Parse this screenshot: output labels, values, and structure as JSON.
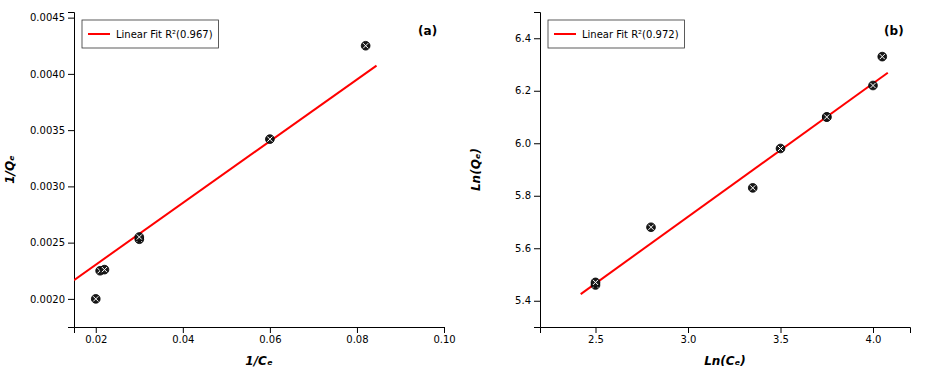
{
  "chart_data": [
    {
      "type": "scatter",
      "title": "(a)",
      "xlabel": "1/Cₑ",
      "ylabel": "1/Qₑ",
      "series": [
        {
          "name": "Linear Fit R²(0.967)",
          "type": "line",
          "color": "#FF0000",
          "x": [
            0.015,
            0.0845
          ],
          "values": [
            0.0021666,
            0.00407368
          ]
        },
        {
          "type": "scatter",
          "color": "#1a1a1a",
          "marker": "circle",
          "x": [
            0.02,
            0.021,
            0.022,
            0.03,
            0.03,
            0.06,
            0.082
          ],
          "values": [
            0.002,
            0.00225,
            0.00226,
            0.00253,
            0.00255,
            0.00342,
            0.00425
          ]
        }
      ],
      "xlim": [
        0.015,
        0.1
      ],
      "ylim": [
        0.00175,
        0.00455
      ],
      "xticks": [
        0.02,
        0.04,
        0.06,
        0.08,
        {
          "value": 0.1,
          "label": "0.10"
        }
      ],
      "yticks": [
        {
          "value": 0.002,
          "label": "0.0020"
        },
        0.0025,
        {
          "value": 0.003,
          "label": "0.0030"
        },
        0.0035,
        {
          "value": 0.004,
          "label": "0.0040"
        },
        0.0045
      ],
      "grid": false,
      "legend": "upper left"
    },
    {
      "type": "scatter",
      "title": "(b)",
      "xlabel": "Ln(Cₑ)",
      "ylabel": "Ln(Qₑ)",
      "series": [
        {
          "name": "Linear Fit R²(0.972)",
          "type": "line",
          "color": "#FF0000",
          "x": [
            2.42,
            4.08
          ],
          "values": [
            5.42536,
            6.26864
          ]
        },
        {
          "type": "scatter",
          "color": "#1a1a1a",
          "marker": "circle",
          "x": [
            2.5,
            2.5,
            2.8,
            3.35,
            3.5,
            3.75,
            3.75,
            4.0,
            4.05
          ],
          "values": [
            5.46,
            5.47,
            5.68,
            5.83,
            5.98,
            6.1,
            6.1,
            6.22,
            6.33
          ]
        }
      ],
      "xlim": [
        2.2,
        4.2
      ],
      "ylim": [
        5.3,
        6.5
      ],
      "xticks": [
        2.5,
        {
          "value": 3.0,
          "label": "3.0"
        },
        3.5,
        {
          "value": 4.0,
          "label": "4.0"
        }
      ],
      "yticks": [
        5.4,
        5.6,
        5.8,
        {
          "value": 6.0,
          "label": "6.0"
        },
        6.2,
        6.4
      ],
      "grid": false,
      "legend": "upper left"
    }
  ]
}
